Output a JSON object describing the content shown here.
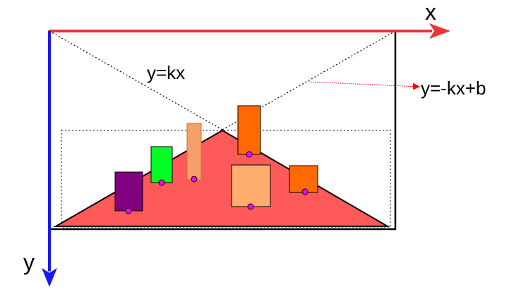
{
  "labels": {
    "x_axis": "x",
    "y_axis": "y",
    "line_kx": "y=kx",
    "line_neg_kx_b": "y=-kx+b"
  },
  "colors": {
    "x_axis": "#e83535",
    "y_axis": "#1a1aee",
    "triangle": "#ff5a5a",
    "purple_box": "#800080",
    "green_box": "#00ff22",
    "peach_box": "#f5a06a",
    "orange_box": "#ff6a00",
    "light_orange_box": "#ffad6e",
    "anchor_dot": "#ff00ff",
    "pointer_arrow": "#ff0000"
  }
}
